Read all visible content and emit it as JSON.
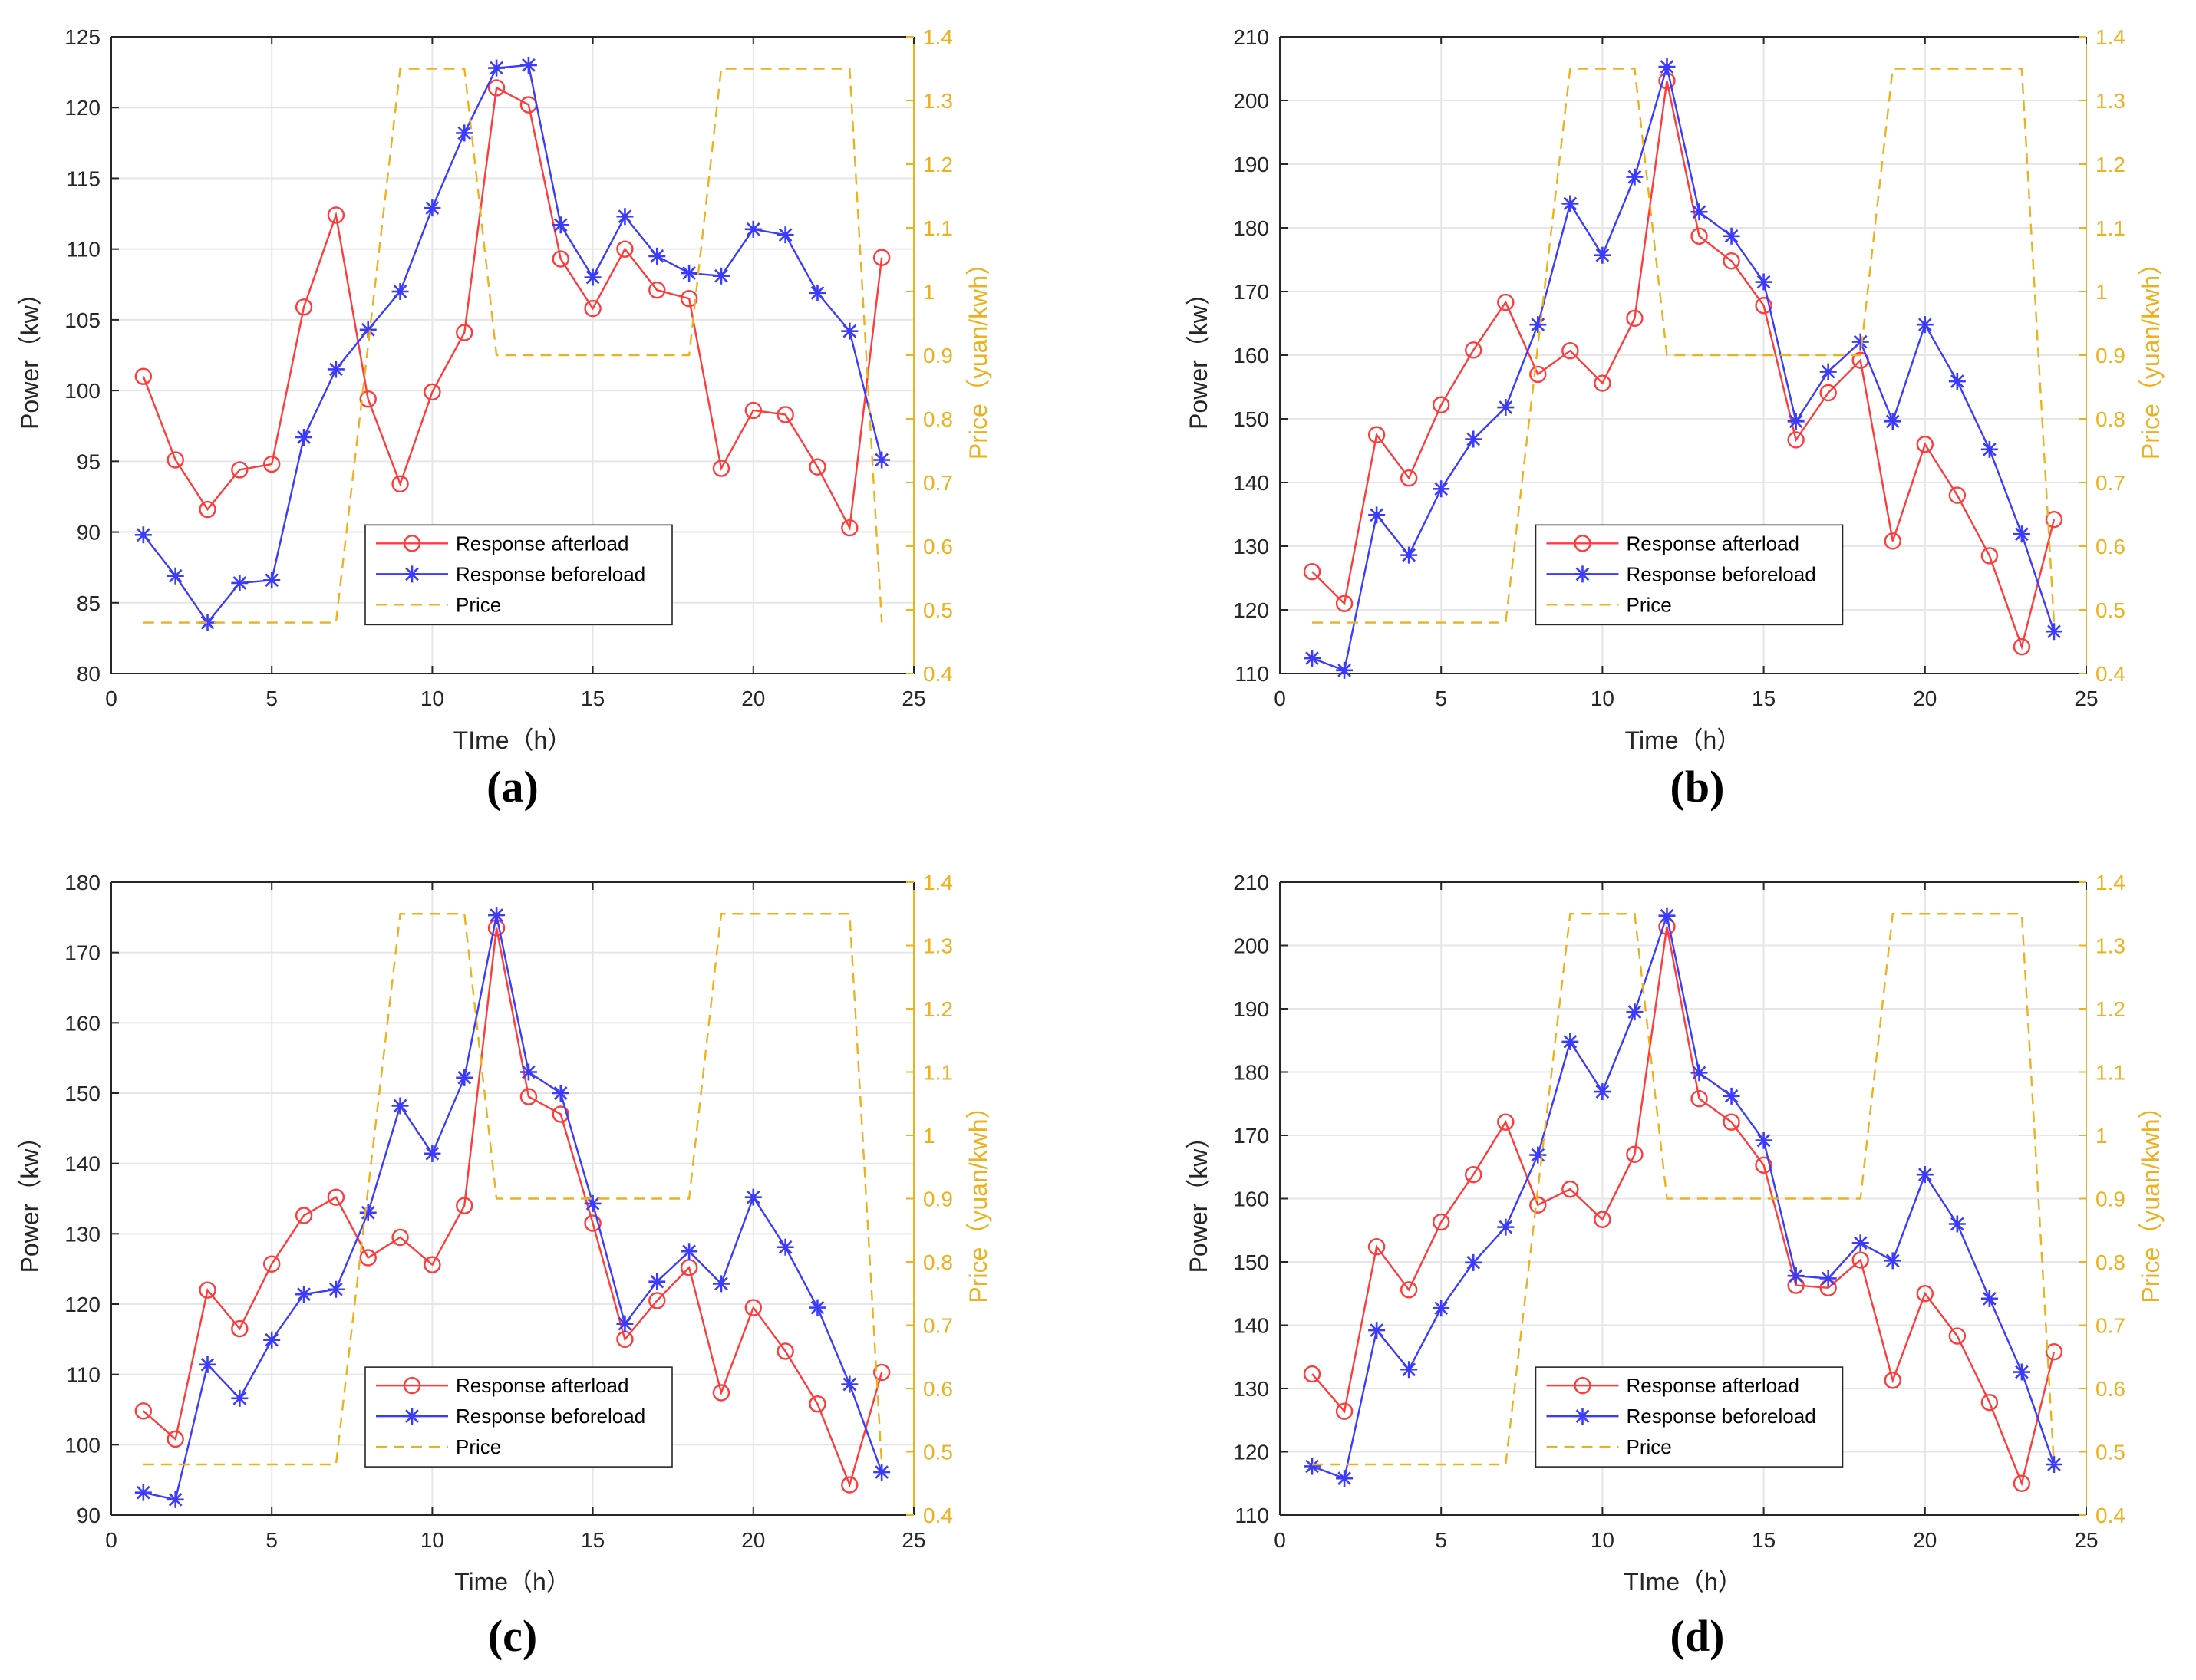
{
  "figure": {
    "captions": [
      "(a)",
      "(b)",
      "(c)",
      "(d)"
    ]
  },
  "style": {
    "after_color": "#FF3B3B",
    "before_color": "#3B3BFF",
    "price_color": "#EDB120",
    "grid_color": "#E6E6E6",
    "axis_color": "#262626"
  },
  "chart_data": [
    {
      "type": "line",
      "caption": "(a)",
      "xlabel": "TIme（h）",
      "ylabel": "Power（kw）",
      "y2label": "Price（yuan/kwh）",
      "xlim": [
        0,
        25
      ],
      "ylim": [
        80,
        125
      ],
      "y2lim": [
        0.4,
        1.4
      ],
      "xticks": [
        0,
        5,
        10,
        15,
        20,
        25
      ],
      "yticks": [
        80,
        85,
        90,
        95,
        100,
        105,
        110,
        115,
        120,
        125
      ],
      "y2ticks": [
        0.4,
        0.5,
        0.6,
        0.7,
        0.8,
        0.9,
        1,
        1.1,
        1.2,
        1.3,
        1.4
      ],
      "legend_position": "bottom-center",
      "x": [
        1,
        2,
        3,
        4,
        5,
        6,
        7,
        8,
        9,
        10,
        11,
        12,
        13,
        14,
        15,
        16,
        17,
        18,
        19,
        20,
        21,
        22,
        23,
        24
      ],
      "series": [
        {
          "name": "Response afterload",
          "marker": "circle",
          "values": [
            101,
            95.1,
            91.6,
            94.4,
            94.8,
            105.9,
            112.4,
            99.4,
            93.4,
            99.9,
            104.1,
            121.4,
            120.2,
            109.3,
            105.8,
            110,
            107.1,
            106.5,
            94.5,
            98.6,
            98.3,
            94.6,
            90.3,
            109.4
          ]
        },
        {
          "name": "Response beforeload",
          "marker": "star",
          "values": [
            89.8,
            86.9,
            83.6,
            86.4,
            86.6,
            96.7,
            101.5,
            104.3,
            107,
            112.9,
            118.2,
            122.8,
            123,
            111.7,
            108,
            112.3,
            109.5,
            108.3,
            108.1,
            111.4,
            111,
            106.9,
            104.2,
            95.1
          ]
        },
        {
          "name": "Price",
          "marker": "none",
          "axis": "right",
          "x": [
            1,
            7,
            9,
            11,
            12,
            18,
            19,
            23,
            24
          ],
          "values": [
            0.48,
            0.48,
            1.35,
            1.35,
            0.9,
            0.9,
            1.35,
            1.35,
            0.48
          ]
        }
      ]
    },
    {
      "type": "line",
      "caption": "(b)",
      "xlabel": "Time（h）",
      "ylabel": "Power（kw）",
      "y2label": "Price（yuan/kwh）",
      "xlim": [
        0,
        25
      ],
      "ylim": [
        110,
        210
      ],
      "y2lim": [
        0.4,
        1.4
      ],
      "xticks": [
        0,
        5,
        10,
        15,
        20,
        25
      ],
      "yticks": [
        110,
        120,
        130,
        140,
        150,
        160,
        170,
        180,
        190,
        200,
        210
      ],
      "y2ticks": [
        0.4,
        0.5,
        0.6,
        0.7,
        0.8,
        0.9,
        1,
        1.1,
        1.2,
        1.3,
        1.4
      ],
      "legend_position": "bottom-center",
      "x": [
        1,
        2,
        3,
        4,
        5,
        6,
        7,
        8,
        9,
        10,
        11,
        12,
        13,
        14,
        15,
        16,
        17,
        18,
        19,
        20,
        21,
        22,
        23,
        24
      ],
      "series": [
        {
          "name": "Response afterload",
          "marker": "circle",
          "values": [
            126,
            121,
            147.5,
            140.7,
            152.2,
            160.8,
            168.3,
            157,
            160.7,
            155.6,
            165.8,
            203.1,
            178.7,
            174.8,
            167.8,
            146.7,
            154.1,
            159.2,
            130.8,
            146,
            138,
            128.5,
            114.2,
            134.2
          ]
        },
        {
          "name": "Response beforeload",
          "marker": "star",
          "values": [
            112.4,
            110.5,
            134.9,
            128.6,
            139,
            146.8,
            151.8,
            164.8,
            183.8,
            175.7,
            188,
            205.3,
            182.5,
            178.7,
            171.5,
            149.6,
            157.4,
            162.1,
            149.6,
            164.8,
            155.9,
            145.2,
            131.9,
            116.6
          ]
        },
        {
          "name": "Price",
          "marker": "none",
          "axis": "right",
          "x": [
            1,
            7,
            9,
            11,
            12,
            18,
            19,
            23,
            24
          ],
          "values": [
            0.48,
            0.48,
            1.35,
            1.35,
            0.9,
            0.9,
            1.35,
            1.35,
            0.48
          ]
        }
      ]
    },
    {
      "type": "line",
      "caption": "(c)",
      "xlabel": "Time（h）",
      "ylabel": "Power（kw）",
      "y2label": "Price（yuan/kwh）",
      "xlim": [
        0,
        25
      ],
      "ylim": [
        90,
        180
      ],
      "y2lim": [
        0.4,
        1.4
      ],
      "xticks": [
        0,
        5,
        10,
        15,
        20,
        25
      ],
      "yticks": [
        90,
        100,
        110,
        120,
        130,
        140,
        150,
        160,
        170,
        180
      ],
      "y2ticks": [
        0.4,
        0.5,
        0.6,
        0.7,
        0.8,
        0.9,
        1,
        1.1,
        1.2,
        1.3,
        1.4
      ],
      "legend_position": "bottom-center",
      "x": [
        1,
        2,
        3,
        4,
        5,
        6,
        7,
        8,
        9,
        10,
        11,
        12,
        13,
        14,
        15,
        16,
        17,
        18,
        19,
        20,
        21,
        22,
        23,
        24
      ],
      "series": [
        {
          "name": "Response afterload",
          "marker": "circle",
          "values": [
            104.8,
            100.8,
            122,
            116.5,
            125.7,
            132.6,
            135.2,
            126.6,
            129.5,
            125.6,
            134,
            173.5,
            149.5,
            147,
            131.5,
            115,
            120.5,
            125.2,
            107.4,
            119.5,
            113.3,
            105.8,
            94.3,
            110.3
          ]
        },
        {
          "name": "Response beforeload",
          "marker": "star",
          "values": [
            93.2,
            92.2,
            111.4,
            106.6,
            114.9,
            121.4,
            122.1,
            133,
            148.2,
            141.4,
            152.2,
            175.3,
            153,
            150,
            134.3,
            117.2,
            123.2,
            127.5,
            122.9,
            135.2,
            128.1,
            119.5,
            108.6,
            96.1
          ]
        },
        {
          "name": "Price",
          "marker": "none",
          "axis": "right",
          "x": [
            1,
            7,
            9,
            11,
            12,
            18,
            19,
            23,
            24
          ],
          "values": [
            0.48,
            0.48,
            1.35,
            1.35,
            0.9,
            0.9,
            1.35,
            1.35,
            0.48
          ]
        }
      ]
    },
    {
      "type": "line",
      "caption": "(d)",
      "xlabel": "TIme（h）",
      "ylabel": "Power（kw）",
      "y2label": "Price（yuan/kwh）",
      "xlim": [
        0,
        25
      ],
      "ylim": [
        110,
        210
      ],
      "y2lim": [
        0.4,
        1.4
      ],
      "xticks": [
        0,
        5,
        10,
        15,
        20,
        25
      ],
      "yticks": [
        110,
        120,
        130,
        140,
        150,
        160,
        170,
        180,
        190,
        200,
        210
      ],
      "y2ticks": [
        0.4,
        0.5,
        0.6,
        0.7,
        0.8,
        0.9,
        1,
        1.1,
        1.2,
        1.3,
        1.4
      ],
      "legend_position": "bottom-center",
      "x": [
        1,
        2,
        3,
        4,
        5,
        6,
        7,
        8,
        9,
        10,
        11,
        12,
        13,
        14,
        15,
        16,
        17,
        18,
        19,
        20,
        21,
        22,
        23,
        24
      ],
      "series": [
        {
          "name": "Response afterload",
          "marker": "circle",
          "values": [
            132.3,
            126.4,
            152.4,
            145.6,
            156.3,
            163.8,
            172.1,
            159,
            161.5,
            156.7,
            167,
            203,
            175.8,
            172.1,
            165.3,
            146.3,
            145.9,
            150.3,
            131.3,
            145,
            138.3,
            127.8,
            115,
            135.8
          ]
        },
        {
          "name": "Response beforeload",
          "marker": "star",
          "values": [
            117.7,
            115.8,
            139.2,
            133,
            142.7,
            149.9,
            155.5,
            166.9,
            184.8,
            176.9,
            189.5,
            204.7,
            179.9,
            176.2,
            169.2,
            147.8,
            147.4,
            153,
            150.2,
            163.8,
            156,
            144.2,
            132.6,
            118
          ]
        },
        {
          "name": "Price",
          "marker": "none",
          "axis": "right",
          "x": [
            1,
            7,
            9,
            11,
            12,
            18,
            19,
            23,
            24
          ],
          "values": [
            0.48,
            0.48,
            1.35,
            1.35,
            0.9,
            0.9,
            1.35,
            1.35,
            0.48
          ]
        }
      ]
    }
  ]
}
